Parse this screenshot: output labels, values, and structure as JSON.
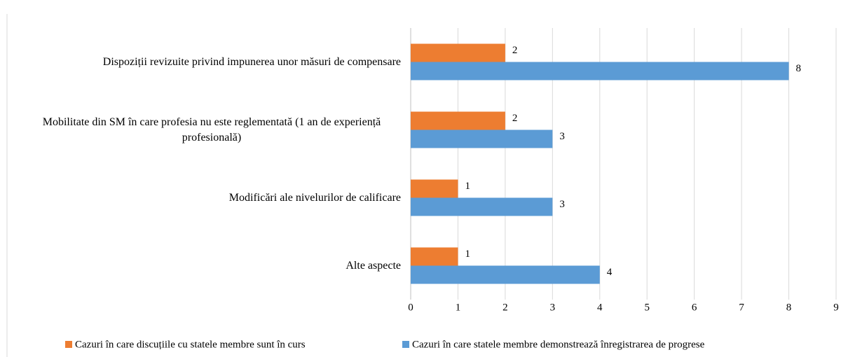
{
  "chart_data": {
    "type": "bar",
    "orientation": "horizontal",
    "categories": [
      "Dispoziții revizuite privind impunerea unor măsuri de compensare",
      "Mobilitate din SM în care profesia nu este reglementată (1 an de experiență profesională)",
      "Modificări ale nivelurilor de calificare",
      "Alte aspecte"
    ],
    "series": [
      {
        "name": "Cazuri în care discuțiile cu statele membre sunt în curs",
        "color": "#ed7d31",
        "values": [
          2,
          2,
          1,
          1
        ]
      },
      {
        "name": "Cazuri în care statele membre demonstrează înregistrarea de progrese",
        "color": "#5b9bd5",
        "values": [
          8,
          3,
          3,
          4
        ]
      }
    ],
    "xlim": [
      0,
      9
    ],
    "xticks": [
      0,
      1,
      2,
      3,
      4,
      5,
      6,
      7,
      8,
      9
    ],
    "grid": true,
    "legend": "bottom"
  }
}
